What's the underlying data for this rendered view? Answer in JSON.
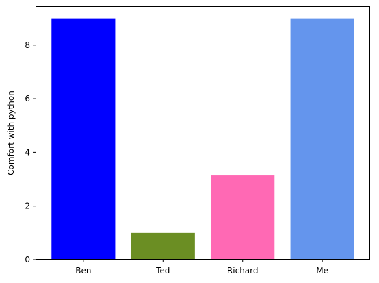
{
  "chart_data": {
    "type": "bar",
    "categories": [
      "Ben",
      "Ted",
      "Richard",
      "Me"
    ],
    "values": [
      9,
      1,
      3.14,
      9
    ],
    "colors": [
      "#0000ff",
      "#6b8e23",
      "#ff69b4",
      "#6495ed"
    ],
    "title": "",
    "xlabel": "",
    "ylabel": "Comfort with python",
    "ylim": [
      0,
      9.45
    ],
    "yticks": [
      0,
      2,
      4,
      6,
      8
    ],
    "grid": false,
    "legend": false
  }
}
